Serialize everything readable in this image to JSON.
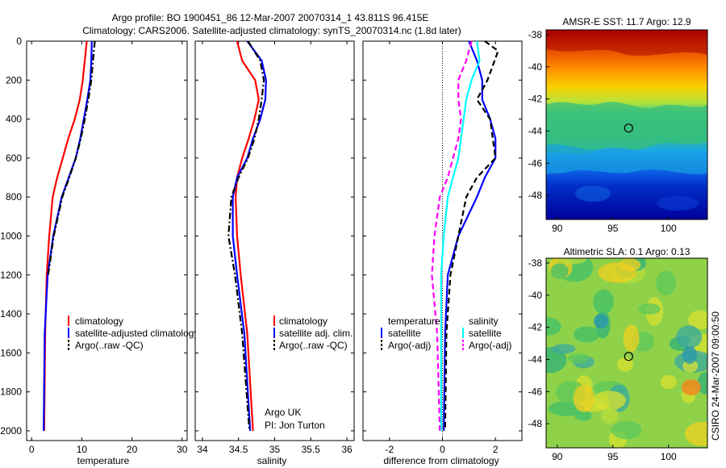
{
  "header": {
    "title_line1": "Argo profile: BO 1900451_86 12-Mar-2007 20070314_1 43.811S 96.415E",
    "title_line2": "Climatology: CARS2006. Satellite-adjusted climatology: synTS_20070314.nc (1.8d later)"
  },
  "colors": {
    "climatology": "#ff0000",
    "satellite": "#0000ff",
    "argo": "#000000",
    "satellite_salinity": "#00ffff",
    "argo_salinity": "#ff00ff"
  },
  "chart_data": [
    {
      "type": "line",
      "id": "temperature",
      "xlabel": "temperature",
      "ylabel": "",
      "xlim": [
        -1,
        31
      ],
      "ylim": [
        0,
        2050
      ],
      "y_reversed": true,
      "xticks": [
        0,
        10,
        20,
        30
      ],
      "yticks": [
        0,
        200,
        400,
        600,
        800,
        1000,
        1200,
        1400,
        1600,
        1800,
        2000
      ],
      "legend": [
        "climatology",
        "satellite-adjusted climatology",
        "Argo(..raw -QC)"
      ],
      "series": [
        {
          "name": "climatology",
          "color": "#ff0000",
          "style": "solid",
          "x": [
            11.0,
            10.6,
            10.2,
            9.6,
            8.6,
            7.3,
            6.2,
            5.1,
            4.2,
            3.5,
            3.0,
            2.7,
            2.5
          ],
          "y": [
            0,
            100,
            200,
            300,
            400,
            500,
            600,
            700,
            800,
            1000,
            1200,
            1500,
            2000
          ]
        },
        {
          "name": "satellite-adjusted climatology",
          "color": "#0000ff",
          "style": "solid",
          "x": [
            12.0,
            11.9,
            11.7,
            11.1,
            10.4,
            9.7,
            8.8,
            7.4,
            6.0,
            4.3,
            3.2,
            2.6,
            2.4
          ],
          "y": [
            0,
            100,
            200,
            300,
            400,
            500,
            600,
            700,
            800,
            1000,
            1200,
            1500,
            2000
          ]
        },
        {
          "name": "Argo(..raw -QC)",
          "color": "#000000",
          "style": "dashdot",
          "x": [
            12.6,
            12.4,
            11.9,
            11.3,
            10.6,
            9.8,
            8.8,
            7.5,
            6.1,
            4.4,
            3.3
          ],
          "y": [
            0,
            50,
            200,
            300,
            400,
            500,
            600,
            700,
            800,
            1000,
            1200
          ]
        }
      ]
    },
    {
      "type": "line",
      "id": "salinity",
      "xlabel": "salinity",
      "ylabel": "",
      "xlim": [
        33.9,
        36.1
      ],
      "ylim": [
        0,
        2050
      ],
      "y_reversed": true,
      "xticks": [
        34,
        34.5,
        35,
        35.5,
        36
      ],
      "legend": [
        "climatology",
        "satellite adj. clim.",
        "Argo(..raw -QC)"
      ],
      "annotation": [
        "Argo UK",
        "PI: Jon Turton"
      ],
      "series": [
        {
          "name": "climatology",
          "color": "#ff0000",
          "style": "solid",
          "x": [
            34.48,
            34.55,
            34.73,
            34.78,
            34.72,
            34.64,
            34.55,
            34.48,
            34.46,
            34.48,
            34.53,
            34.62,
            34.7
          ],
          "y": [
            0,
            100,
            200,
            300,
            400,
            500,
            600,
            700,
            800,
            1000,
            1200,
            1500,
            2000
          ]
        },
        {
          "name": "satellite adj. clim.",
          "color": "#0000ff",
          "style": "solid",
          "x": [
            34.62,
            34.82,
            34.88,
            34.87,
            34.8,
            34.7,
            34.62,
            34.48,
            34.42,
            34.42,
            34.48,
            34.58,
            34.66
          ],
          "y": [
            0,
            100,
            200,
            300,
            400,
            500,
            600,
            700,
            800,
            1000,
            1200,
            1500,
            2000
          ]
        },
        {
          "name": "Argo(..raw -QC)",
          "color": "#000000",
          "style": "dashdot",
          "x": [
            34.63,
            34.8,
            34.85,
            34.82,
            34.78,
            34.72,
            34.63,
            34.5,
            34.4,
            34.36,
            34.45,
            34.55,
            34.65
          ],
          "y": [
            0,
            100,
            200,
            300,
            400,
            500,
            600,
            700,
            800,
            1000,
            1200,
            1500,
            2000
          ]
        }
      ]
    },
    {
      "type": "line",
      "id": "difference",
      "xlabel": "difference from climatology",
      "ylabel": "",
      "xlim": [
        -3,
        3
      ],
      "ylim": [
        0,
        2050
      ],
      "y_reversed": true,
      "xticks": [
        -2,
        0,
        2
      ],
      "zero_line": "dotted",
      "legend_left_title": "temperature",
      "legend_left": [
        "satellite",
        "Argo(-adj)"
      ],
      "legend_right_title": "salinity",
      "legend_right": [
        "satellite",
        "Argo(-adj)"
      ],
      "series": [
        {
          "name": "temperature satellite",
          "color": "#0000ff",
          "style": "solid",
          "x": [
            1.0,
            1.3,
            1.5,
            1.5,
            1.8,
            2.0,
            2.0,
            1.6,
            1.3,
            0.6,
            0.2,
            0.1,
            0.05
          ],
          "y": [
            0,
            100,
            200,
            300,
            400,
            500,
            600,
            700,
            800,
            1000,
            1200,
            1500,
            2000
          ]
        },
        {
          "name": "temperature Argo(-adj)",
          "color": "#000000",
          "style": "dashed",
          "x": [
            1.6,
            2.1,
            1.7,
            1.3,
            1.8,
            1.9,
            2.0,
            1.3,
            0.9,
            0.6,
            0.3,
            0.15,
            0.1
          ],
          "y": [
            0,
            50,
            200,
            300,
            400,
            500,
            600,
            700,
            800,
            1000,
            1200,
            1500,
            2000
          ]
        },
        {
          "name": "salinity satellite",
          "color": "#00ffff",
          "style": "solid",
          "x": [
            1.3,
            1.4,
            1.1,
            0.9,
            0.8,
            0.7,
            0.6,
            0.4,
            0.2,
            0.05,
            -0.05,
            -0.05,
            -0.05
          ],
          "y": [
            0,
            100,
            200,
            300,
            400,
            500,
            600,
            700,
            800,
            1000,
            1200,
            1500,
            2000
          ]
        },
        {
          "name": "salinity Argo(-adj)",
          "color": "#ff00ff",
          "style": "dashed",
          "x": [
            1.1,
            0.9,
            0.6,
            0.6,
            0.7,
            0.6,
            0.4,
            0.2,
            -0.1,
            -0.3,
            -0.4,
            -0.2,
            -0.1
          ],
          "y": [
            0,
            100,
            200,
            300,
            400,
            500,
            600,
            700,
            800,
            1000,
            1200,
            1500,
            2000
          ]
        }
      ]
    },
    {
      "type": "heatmap",
      "id": "sst",
      "title": "AMSR-E SST: 11.7 Argo: 12.9",
      "xlim": [
        89,
        103.5
      ],
      "ylim": [
        -49.5,
        -37.7
      ],
      "xticks": [
        90,
        95,
        100
      ],
      "yticks": [
        -38,
        -40,
        -42,
        -44,
        -46,
        -48
      ],
      "marker": {
        "lon": 96.415,
        "lat": -43.811
      }
    },
    {
      "type": "heatmap",
      "id": "sla",
      "title": "Altimetric SLA: 0.1 Argo: 0.13",
      "xlim": [
        89,
        103.5
      ],
      "ylim": [
        -49.5,
        -37.7
      ],
      "xticks": [
        90,
        95,
        100
      ],
      "yticks": [
        -38,
        -40,
        -42,
        -44,
        -46,
        -48
      ],
      "marker": {
        "lon": 96.415,
        "lat": -43.811
      }
    }
  ],
  "footer": {
    "credit": "CSIRO 24-Mar-2007 09:00:50"
  }
}
